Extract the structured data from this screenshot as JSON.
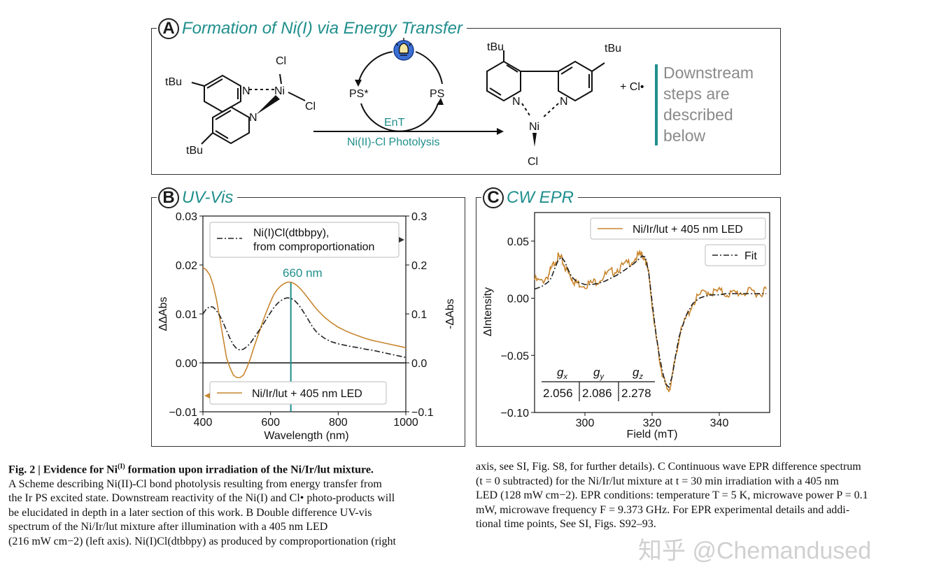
{
  "panelA": {
    "letter": "A",
    "title": "Formation of Ni(I) via Energy Transfer",
    "reactant": {
      "tbu_top": "tBu",
      "tbu_bottom": "tBu",
      "n1": "N",
      "n2": "N",
      "ni": "Ni",
      "cl1": "Cl",
      "cl2": "Cl"
    },
    "cycle": {
      "ps_star": "PS*",
      "ps": "PS",
      "ent": "EnT"
    },
    "arrow_label": "Ni(II)-Cl Photolysis",
    "product": {
      "tbu_left": "tBu",
      "tbu_right": "tBu",
      "n1": "N",
      "n2": "N",
      "ni": "Ni",
      "cl": "Cl",
      "plus_cl": "+ Cl•"
    },
    "downstream": [
      "Downstream",
      "steps are",
      "described",
      "below"
    ],
    "colors": {
      "teal": "#1f8f8c",
      "bulb": "#3b6fd6"
    }
  },
  "panelB": {
    "letter": "B",
    "title": "UV-Vis",
    "legend_top": [
      "Ni(I)Cl(dtbbpy),",
      "from comproportionation"
    ],
    "legend_bottom": "Ni/Ir/lut + 405 nm LED",
    "marker_label": "660 nm",
    "chart_data": {
      "type": "line",
      "xlabel": "Wavelength (nm)",
      "ylabel": "ΔΔAbs",
      "ylabel_right": "-ΔAbs",
      "xlim": [
        400,
        1000
      ],
      "ylim": [
        -0.01,
        0.03
      ],
      "ylim_right": [
        -0.1,
        0.3
      ],
      "xticks": [
        "400",
        "600",
        "800",
        "1000"
      ],
      "yticks": [
        "−0.01",
        "0.00",
        "0.01",
        "0.02",
        "0.03"
      ],
      "yticks_right": [
        "−0.1",
        "0.0",
        "0.1",
        "0.2",
        "0.3"
      ],
      "vline_x": 660,
      "series": [
        {
          "name": "Ni/Ir/lut + 405 nm LED",
          "axis": "left",
          "color": "#c8862e",
          "x": [
            400,
            410,
            420,
            430,
            440,
            450,
            460,
            470,
            480,
            490,
            500,
            510,
            520,
            530,
            540,
            550,
            560,
            570,
            580,
            590,
            600,
            610,
            620,
            630,
            640,
            650,
            660,
            670,
            680,
            690,
            700,
            710,
            720,
            730,
            740,
            760,
            780,
            800,
            820,
            840,
            860,
            880,
            900,
            920,
            940,
            960,
            980,
            1000
          ],
          "y": [
            0.0195,
            0.019,
            0.018,
            0.016,
            0.013,
            0.009,
            0.005,
            0.001,
            -0.001,
            -0.0025,
            -0.003,
            -0.003,
            -0.0025,
            -0.001,
            0.0008,
            0.003,
            0.005,
            0.007,
            0.009,
            0.0108,
            0.0125,
            0.014,
            0.015,
            0.0157,
            0.0162,
            0.0165,
            0.0165,
            0.0162,
            0.0157,
            0.015,
            0.0142,
            0.0133,
            0.0124,
            0.0115,
            0.0107,
            0.0093,
            0.0082,
            0.0073,
            0.0066,
            0.006,
            0.0055,
            0.005,
            0.0046,
            0.0043,
            0.004,
            0.0037,
            0.0034,
            0.0031
          ]
        },
        {
          "name": "Ni(I)Cl(dtbbpy), from comproportionation",
          "axis": "right",
          "color": "#222222",
          "x": [
            400,
            410,
            420,
            430,
            440,
            450,
            460,
            470,
            480,
            490,
            500,
            510,
            520,
            530,
            540,
            550,
            560,
            570,
            580,
            590,
            600,
            610,
            620,
            630,
            640,
            650,
            660,
            670,
            680,
            690,
            700,
            710,
            720,
            730,
            740,
            760,
            780,
            800,
            820,
            840,
            860,
            880,
            900,
            920,
            940,
            960,
            980,
            1000
          ],
          "y": [
            0.1,
            0.11,
            0.115,
            0.114,
            0.107,
            0.096,
            0.082,
            0.066,
            0.05,
            0.037,
            0.029,
            0.026,
            0.028,
            0.033,
            0.04,
            0.05,
            0.06,
            0.07,
            0.081,
            0.092,
            0.103,
            0.113,
            0.121,
            0.127,
            0.131,
            0.133,
            0.132,
            0.128,
            0.121,
            0.112,
            0.101,
            0.09,
            0.078,
            0.068,
            0.06,
            0.05,
            0.043,
            0.039,
            0.036,
            0.033,
            0.031,
            0.028,
            0.026,
            0.023,
            0.02,
            0.017,
            0.014,
            0.011
          ]
        }
      ]
    }
  },
  "panelC": {
    "letter": "C",
    "title": "CW EPR",
    "legend_data": "Ni/Ir/lut + 405 nm LED",
    "legend_fit": "Fit",
    "gtable": {
      "headers": [
        "gx",
        "gy",
        "gz"
      ],
      "header_main": "g",
      "header_sub": [
        "x",
        "y",
        "z"
      ],
      "values": [
        "2.056",
        "2.086",
        "2.278"
      ]
    },
    "chart_data": {
      "type": "line",
      "xlabel": "Field (mT)",
      "ylabel": "ΔIntensity",
      "xlim": [
        285,
        355
      ],
      "ylim": [
        -0.1,
        0.075
      ],
      "xticks": [
        "300",
        "320",
        "340"
      ],
      "yticks": [
        "−0.10",
        "−0.05",
        "0.00",
        "0.05"
      ],
      "series": [
        {
          "name": "Ni/Ir/lut + 405 nm LED",
          "color": "#c8862e",
          "x": [
            285,
            287,
            289,
            290,
            291,
            292,
            293,
            294,
            295,
            296,
            297,
            298,
            300,
            302,
            304,
            306,
            308,
            310,
            312,
            314,
            316,
            317,
            318,
            319,
            320,
            321,
            322,
            323,
            324,
            325,
            326,
            327,
            328,
            330,
            332,
            334,
            336,
            338,
            340,
            342,
            344,
            346,
            348,
            350,
            352,
            354
          ],
          "y": [
            0.016,
            0.014,
            0.02,
            0.025,
            0.032,
            0.036,
            0.034,
            0.028,
            0.022,
            0.018,
            0.014,
            0.013,
            0.012,
            0.013,
            0.016,
            0.02,
            0.023,
            0.026,
            0.029,
            0.033,
            0.037,
            0.038,
            0.035,
            0.02,
            -0.005,
            -0.03,
            -0.05,
            -0.065,
            -0.077,
            -0.08,
            -0.07,
            -0.05,
            -0.035,
            -0.018,
            -0.005,
            0.002,
            0.006,
            0.005,
            0.006,
            0.004,
            0.004,
            0.005,
            0.005,
            0.006,
            0.004,
            0.008
          ]
        },
        {
          "name": "Fit",
          "color": "#222222",
          "x": [
            285,
            287,
            289,
            290,
            291,
            292,
            293,
            294,
            295,
            296,
            297,
            298,
            300,
            302,
            304,
            306,
            308,
            310,
            312,
            314,
            316,
            317,
            318,
            319,
            320,
            321,
            322,
            323,
            324,
            325,
            326,
            327,
            328,
            330,
            332,
            334,
            336,
            338,
            340,
            342,
            344,
            346,
            348,
            350,
            352,
            354
          ],
          "y": [
            0.008,
            0.01,
            0.014,
            0.018,
            0.026,
            0.033,
            0.036,
            0.032,
            0.025,
            0.019,
            0.016,
            0.014,
            0.012,
            0.012,
            0.013,
            0.015,
            0.018,
            0.021,
            0.025,
            0.029,
            0.034,
            0.037,
            0.036,
            0.022,
            -0.003,
            -0.028,
            -0.048,
            -0.063,
            -0.075,
            -0.078,
            -0.068,
            -0.05,
            -0.034,
            -0.016,
            -0.005,
            0.0,
            0.002,
            0.003,
            0.003,
            0.004,
            0.004,
            0.004,
            0.004,
            0.004,
            0.004,
            0.004
          ]
        }
      ]
    }
  },
  "caption": {
    "left": {
      "bold_lead": "Fig. 2 | Evidence for Ni",
      "bold_sup": "(I)",
      "bold_tail": " formation upon irradiation of the Ni/Ir/lut mixture.",
      "lines": [
        "A Scheme describing Ni(II)-Cl bond photolysis resulting from energy transfer from",
        "the Ir PS excited state. Downstream reactivity of the Ni(I) and Cl• photo-products will",
        "be elucidated in depth in a later section of this work. B Double difference UV-vis",
        "spectrum of the Ni/Ir/lut mixture after illumination with a 405 nm LED",
        "(216 mW cm−2) (left axis). Ni(I)Cl(dtbbpy) as produced by comproportionation (right"
      ]
    },
    "right": {
      "lines": [
        "axis, see SI, Fig. S8, for further details). C Continuous wave EPR difference spectrum",
        "(t = 0 subtracted) for the Ni/Ir/lut mixture at t = 30 min irradiation with a 405 nm",
        "LED (128 mW cm−2). EPR conditions: temperature T = 5 K, microwave power P = 0.1",
        "mW, microwave frequency F = 9.373 GHz. For EPR experimental details and addi-",
        "tional time points, See SI, Figs. S92–93."
      ]
    }
  },
  "watermark": "知乎 @Chemandused"
}
